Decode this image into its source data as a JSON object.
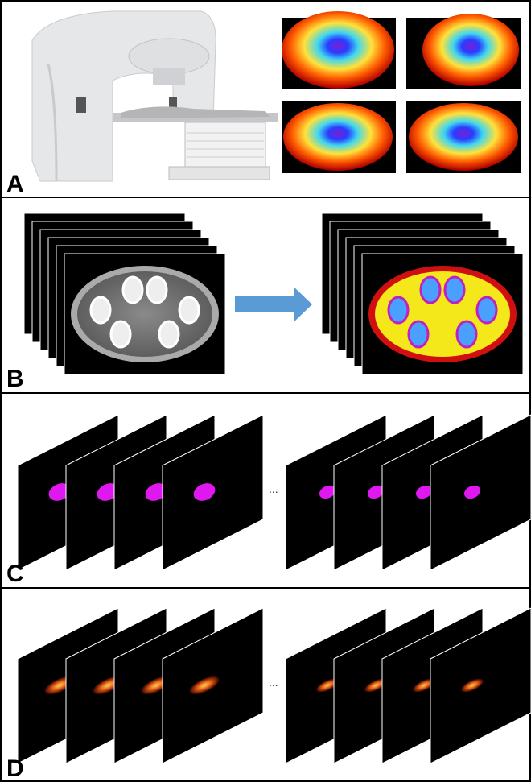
{
  "panels": [
    {
      "label": "A"
    },
    {
      "label": "B"
    },
    {
      "label": "C",
      "ellipsis": "..."
    },
    {
      "label": "D",
      "ellipsis": "..."
    }
  ]
}
